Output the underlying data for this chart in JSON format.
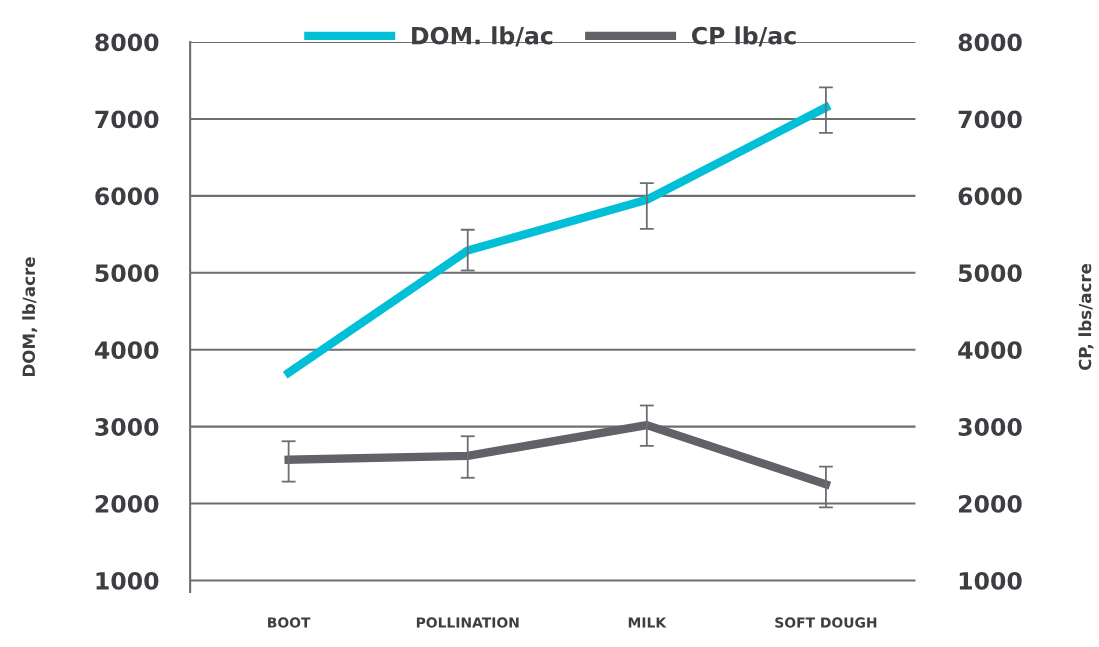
{
  "chart_data": {
    "type": "line",
    "categories": [
      "BOOT",
      "POLLINATION",
      "MILK",
      "SOFT DOUGH"
    ],
    "ylabel": "DOM, lb/acre",
    "y2label": "CP, lbs/acre",
    "ylim": [
      850,
      8000
    ],
    "yticks": [
      1000,
      2000,
      3000,
      4000,
      5000,
      6000,
      7000,
      8000
    ],
    "y2lim": [
      850,
      8000
    ],
    "y2ticks": [
      1000,
      2000,
      3000,
      4000,
      5000,
      6000,
      7000,
      8000
    ],
    "grid": "y",
    "legend": "top",
    "marker": "none",
    "line_style": "solid",
    "series": [
      {
        "name": "DOM. lb/ac",
        "color": "#00bfd6",
        "values": [
          3700,
          5290,
          5950,
          7150
        ],
        "errors": [
          null,
          [
            5030,
            5560
          ],
          [
            5570,
            6165
          ],
          [
            6820,
            7410
          ]
        ]
      },
      {
        "name": "CP lb/ac",
        "color": "#616167",
        "values": [
          2570,
          2620,
          3020,
          2250
        ],
        "errors": [
          [
            2285,
            2810
          ],
          [
            2335,
            2875
          ],
          [
            2750,
            3275
          ],
          [
            1950,
            2480
          ]
        ]
      }
    ]
  }
}
